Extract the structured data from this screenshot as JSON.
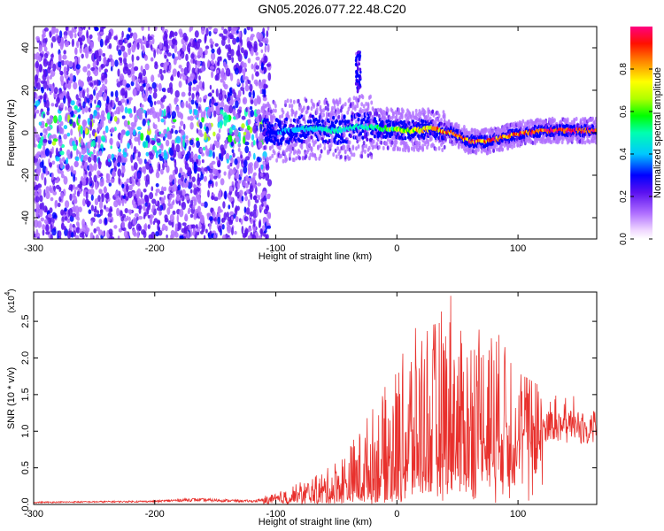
{
  "title": "GN05.2026.077.22.48.C20",
  "chart_data": [
    {
      "type": "heatmap",
      "xlabel": "Height of straight line (km)",
      "ylabel": "Frequency (Hz)",
      "xlim": [
        -300,
        165
      ],
      "ylim": [
        -50,
        50
      ],
      "xticks": [
        -300,
        -200,
        -100,
        0,
        100
      ],
      "xtick_labels": [
        "-300",
        "-200",
        "-100",
        "0",
        "100"
      ],
      "yticks": [
        -40,
        -20,
        0,
        20,
        40
      ],
      "ytick_labels": [
        "-40",
        "-20",
        "0",
        "20",
        "40"
      ],
      "colorbar": {
        "label": "Normalized spectral amplitude",
        "range": [
          0,
          1
        ],
        "ticks": [
          0.0,
          0.2,
          0.4,
          0.6,
          0.8
        ],
        "tick_labels": [
          "0.0",
          "0.2",
          "0.4",
          "0.6",
          "0.8"
        ]
      },
      "ridge": {
        "x": [
          -110,
          -90,
          -70,
          -50,
          -30,
          -10,
          10,
          30,
          45,
          60,
          75,
          90,
          105,
          120,
          140,
          165
        ],
        "freq": [
          0,
          1,
          2,
          1,
          3,
          2,
          1,
          2,
          0,
          -4,
          -4,
          -2,
          0,
          1,
          1,
          1
        ],
        "amplitude": [
          0.25,
          0.35,
          0.45,
          0.45,
          0.45,
          0.55,
          0.7,
          0.8,
          0.9,
          0.9,
          0.92,
          0.9,
          0.9,
          0.95,
          1.0,
          1.0
        ]
      },
      "blob": {
        "x": -32,
        "freq": [
          19,
          38
        ],
        "amplitude": 0.25
      }
    },
    {
      "type": "line",
      "xlabel": "Height of straight line (km)",
      "ylabel": "SNR (10 * v/v)",
      "ylabel_multiplier": "(x10",
      "ylabel_exponent": "4",
      "xlim": [
        -300,
        165
      ],
      "ylim": [
        0,
        2.9
      ],
      "xticks": [
        -300,
        -200,
        -100,
        0,
        100
      ],
      "xtick_labels": [
        "-300",
        "-200",
        "-100",
        "0",
        "100"
      ],
      "yticks": [
        0.0,
        0.5,
        1.0,
        1.5,
        2.0,
        2.5
      ],
      "ytick_labels": [
        "0.0",
        "0.5",
        "1.0",
        "1.5",
        "2.0",
        "2.5"
      ],
      "series": [
        {
          "name": "SNR",
          "color": "#e8302c",
          "envelope_x": [
            -300,
            -200,
            -170,
            -120,
            -100,
            -80,
            -60,
            -40,
            -20,
            0,
            10,
            20,
            30,
            40,
            45,
            50,
            60,
            70,
            80,
            90,
            100,
            110,
            120,
            130,
            140,
            150,
            165
          ],
          "envelope_max": [
            0.05,
            0.07,
            0.12,
            0.08,
            0.15,
            0.3,
            0.45,
            0.8,
            1.3,
            1.9,
            2.3,
            2.5,
            2.5,
            2.7,
            2.9,
            2.4,
            2.3,
            2.5,
            2.4,
            2.2,
            1.8,
            1.7,
            1.6,
            1.5,
            1.45,
            1.5,
            1.45
          ],
          "baseline": [
            0.02,
            0.03,
            0.04,
            0.03,
            0.03,
            0.05,
            0.05,
            0.05,
            0.1,
            0.1,
            0.2,
            0.3,
            0.3,
            0.4,
            0.4,
            0.4,
            0.5,
            0.6,
            0.7,
            0.8,
            0.9,
            1.0,
            1.1,
            1.1,
            1.1,
            1.1,
            1.1
          ]
        }
      ]
    }
  ]
}
